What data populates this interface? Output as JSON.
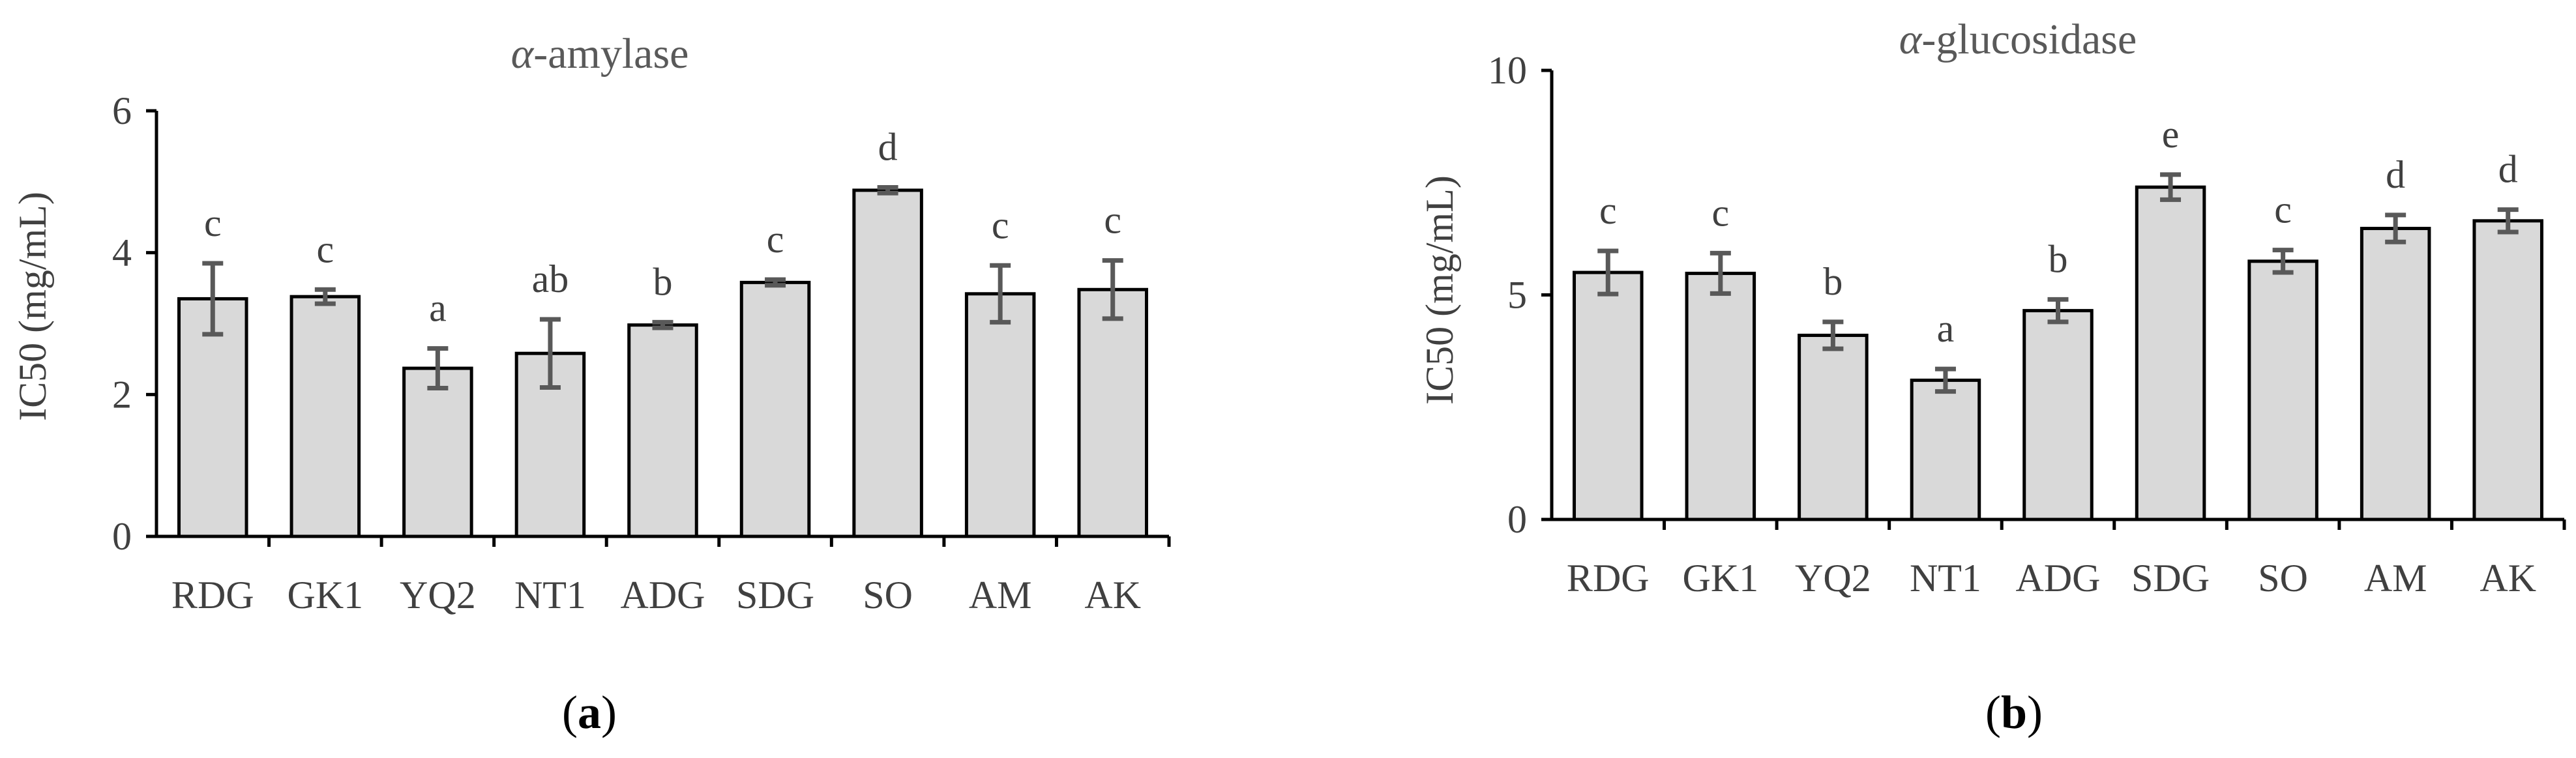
{
  "colors": {
    "bar_fill": "#d9d9d9",
    "bar_stroke": "#000000",
    "axis": "#000000",
    "error": "#595959",
    "text": "#404040"
  },
  "chart_data": [
    {
      "type": "bar",
      "title_prefix": "α",
      "title_suffix": "-amylase",
      "title": "α-amylase",
      "xlabel": "",
      "ylabel": "IC50 (mg/mL)",
      "ylim": [
        0,
        6
      ],
      "yticks": [
        "0",
        "2",
        "4",
        "6"
      ],
      "grid": false,
      "categories": [
        "RDG",
        "GK1",
        "YQ2",
        "NT1",
        "ADG",
        "SDG",
        "SO",
        "AM",
        "AK"
      ],
      "values": [
        3.35,
        3.38,
        2.37,
        2.58,
        2.98,
        3.58,
        4.88,
        3.42,
        3.48
      ],
      "errors": [
        0.5,
        0.1,
        0.28,
        0.48,
        0.04,
        0.04,
        0.04,
        0.4,
        0.41
      ],
      "significance": [
        "c",
        "c",
        "a",
        "ab",
        "b",
        "c",
        "d",
        "c",
        "c"
      ],
      "panel_label_open": "(",
      "panel_label": "a",
      "panel_label_close": ")"
    },
    {
      "type": "bar",
      "title_prefix": "α",
      "title_suffix": "-glucosidase",
      "title": "α-glucosidase",
      "xlabel": "",
      "ylabel": "IC50 (mg/mL)",
      "ylim": [
        0,
        10
      ],
      "yticks": [
        "0",
        "5",
        "10"
      ],
      "grid": false,
      "categories": [
        "RDG",
        "GK1",
        "YQ2",
        "NT1",
        "ADG",
        "SDG",
        "SO",
        "AM",
        "AK"
      ],
      "values": [
        5.5,
        5.48,
        4.1,
        3.1,
        4.65,
        7.4,
        5.75,
        6.48,
        6.65
      ],
      "errors": [
        0.48,
        0.45,
        0.3,
        0.25,
        0.25,
        0.28,
        0.25,
        0.3,
        0.25
      ],
      "significance": [
        "c",
        "c",
        "b",
        "a",
        "b",
        "e",
        "c",
        "d",
        "d"
      ],
      "panel_label_open": "(",
      "panel_label": "b",
      "panel_label_close": ")"
    }
  ]
}
